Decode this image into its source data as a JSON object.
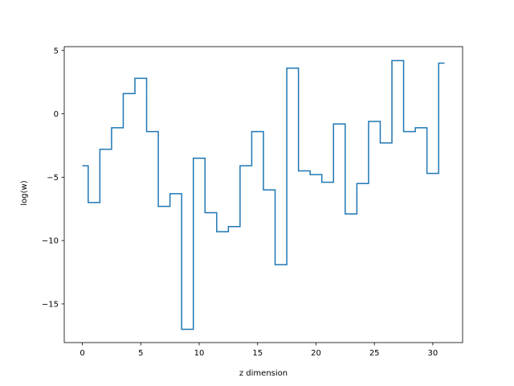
{
  "chart_data": {
    "type": "line",
    "drawstyle": "steps-mid",
    "xlabel": "z dimension",
    "ylabel": "log(w)",
    "xlim": [
      -1.55,
      32.55
    ],
    "ylim": [
      -18.05,
      5.3
    ],
    "xticks": [
      0,
      5,
      10,
      15,
      20,
      25,
      30
    ],
    "yticks": [
      -15,
      -10,
      -5,
      0,
      5
    ],
    "ytick_labels": [
      "−15",
      "−10",
      "−5",
      "0",
      "5"
    ],
    "grid": false,
    "line_color": "#1f77b4",
    "series": [
      {
        "x": [
          0,
          1,
          2,
          3,
          4,
          5,
          6,
          7,
          8,
          9,
          10,
          11,
          12,
          13,
          14,
          15,
          16,
          17,
          18,
          19,
          20,
          21,
          22,
          23,
          24,
          25,
          26,
          27,
          28,
          29,
          30,
          31
        ],
        "values": [
          -4.1,
          -7.0,
          -2.8,
          -1.1,
          1.6,
          2.8,
          -1.4,
          -7.3,
          -6.3,
          -17.0,
          -3.5,
          -7.8,
          -9.3,
          -8.9,
          -4.1,
          -1.4,
          -6.0,
          -11.9,
          3.6,
          -4.5,
          -4.8,
          -5.4,
          -0.8,
          -7.9,
          -5.5,
          -0.6,
          -2.3,
          4.2,
          -1.4,
          -1.1,
          -4.7,
          4.0
        ]
      }
    ]
  }
}
